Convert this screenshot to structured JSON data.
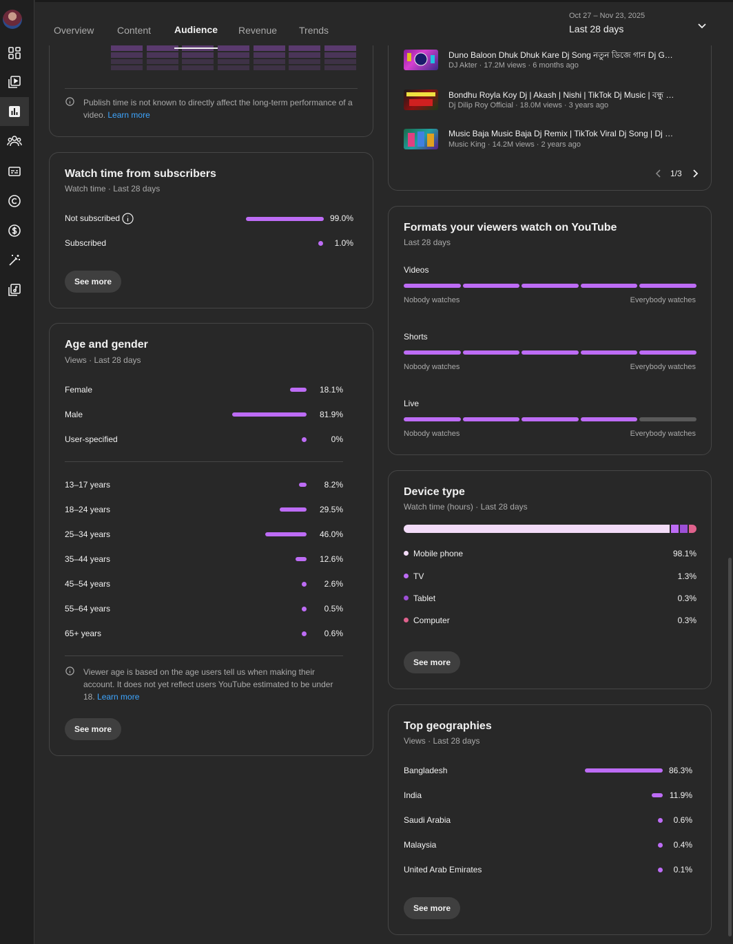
{
  "tabs": [
    "Overview",
    "Content",
    "Audience",
    "Revenue",
    "Trends"
  ],
  "active_tab": "Audience",
  "date": {
    "range": "Oct 27 – Nov 23, 2025",
    "label": "Last 28 days"
  },
  "publish_note": {
    "text": "Publish time is not known to directly affect the long-term performance of a video.",
    "link": "Learn more"
  },
  "subscribers": {
    "title": "Watch time from subscribers",
    "subtitle": "Watch time · Last 28 days",
    "rows": [
      {
        "label": "Not subscribed",
        "value": "99.0%",
        "pct": 99.0
      },
      {
        "label": "Subscribed",
        "value": "1.0%",
        "pct": 1.0
      }
    ],
    "button": "See more"
  },
  "age_gender": {
    "title": "Age and gender",
    "subtitle": "Views · Last 28 days",
    "gender": [
      {
        "label": "Female",
        "value": "18.1%",
        "pct": 18.1
      },
      {
        "label": "Male",
        "value": "81.9%",
        "pct": 81.9
      },
      {
        "label": "User-specified",
        "value": "0%",
        "pct": 0
      }
    ],
    "ages": [
      {
        "label": "13–17 years",
        "value": "8.2%",
        "pct": 8.2
      },
      {
        "label": "18–24 years",
        "value": "29.5%",
        "pct": 29.5
      },
      {
        "label": "25–34 years",
        "value": "46.0%",
        "pct": 46.0
      },
      {
        "label": "35–44 years",
        "value": "12.6%",
        "pct": 12.6
      },
      {
        "label": "45–54 years",
        "value": "2.6%",
        "pct": 2.6
      },
      {
        "label": "55–64 years",
        "value": "0.5%",
        "pct": 0.5
      },
      {
        "label": "65+ years",
        "value": "0.6%",
        "pct": 0.6
      }
    ],
    "note": "Viewer age is based on the age users tell us when making their account. It does not yet reflect users YouTube estimated to be under 18.",
    "note_link": "Learn more",
    "button": "See more"
  },
  "videos": {
    "items": [
      {
        "title": "Duno Baloon Dhuk Dhuk Kare Dj Song নতুন ডিজে গান Dj Gaan",
        "meta": "DJ Akter · 17.2M views · 6 months ago"
      },
      {
        "title": "Bondhu Royla Koy Dj | Akash | Nishi | TikTok Dj Music | বন্ধু তুমি",
        "meta": "Dj Dilip Roy Official · 18.0M views · 3 years ago"
      },
      {
        "title": "Music Baja Music Baja Dj Remix | TikTok Viral Dj Song | Dj Gaan",
        "meta": "Music King · 14.2M views · 2 years ago"
      }
    ],
    "page": "1/3"
  },
  "formats": {
    "title": "Formats your viewers watch on YouTube",
    "subtitle": "Last 28 days",
    "items": [
      {
        "label": "Videos",
        "filled": 5
      },
      {
        "label": "Shorts",
        "filled": 5
      },
      {
        "label": "Live",
        "filled": 4
      }
    ],
    "low": "Nobody watches",
    "high": "Everybody watches"
  },
  "device": {
    "title": "Device type",
    "subtitle": "Watch time (hours) · Last 28 days",
    "items": [
      {
        "label": "Mobile phone",
        "value": "98.1%",
        "color": "#f3dcf8"
      },
      {
        "label": "TV",
        "value": "1.3%",
        "color": "#bd6cf5"
      },
      {
        "label": "Tablet",
        "value": "0.3%",
        "color": "#9c4fd6"
      },
      {
        "label": "Computer",
        "value": "0.3%",
        "color": "#e0628d"
      }
    ],
    "button": "See more"
  },
  "geo": {
    "title": "Top geographies",
    "subtitle": "Views · Last 28 days",
    "rows": [
      {
        "label": "Bangladesh",
        "value": "86.3%",
        "pct": 86.3
      },
      {
        "label": "India",
        "value": "11.9%",
        "pct": 11.9
      },
      {
        "label": "Saudi Arabia",
        "value": "0.6%",
        "pct": 0.6
      },
      {
        "label": "Malaysia",
        "value": "0.4%",
        "pct": 0.4
      },
      {
        "label": "United Arab Emirates",
        "value": "0.1%",
        "pct": 0.1
      }
    ],
    "button": "See more"
  },
  "colors": {
    "accent": "#bd6cf5",
    "link": "#3ea6ff",
    "card_border": "#464646"
  }
}
